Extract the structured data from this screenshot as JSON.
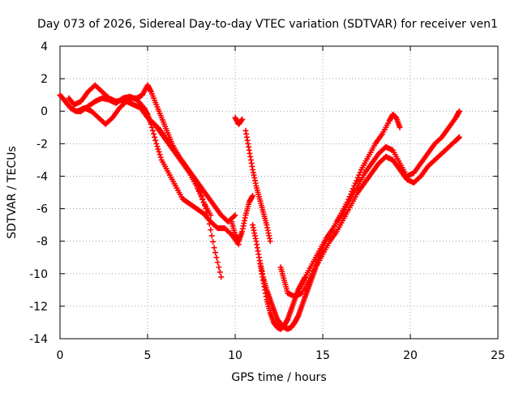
{
  "chart_data": {
    "type": "scatter",
    "title": "Day 073 of 2026, Sidereal Day-to-day VTEC variation (SDTVAR) for receiver ven1",
    "xlabel": "GPS time / hours",
    "ylabel": "SDTVAR / TECUs",
    "xlim": [
      0,
      25
    ],
    "ylim": [
      -14,
      4
    ],
    "xticks": [
      "0",
      "5",
      "10",
      "15",
      "20",
      "25"
    ],
    "yticks": [
      "4",
      "2",
      "0",
      "-2",
      "-4",
      "-6",
      "-8",
      "-10",
      "-12",
      "-14"
    ],
    "grid": true,
    "marker": "plus",
    "color": "#ff0000",
    "series": [
      {
        "x": [
          0.0,
          0.3,
          0.6,
          0.9,
          1.2,
          1.6,
          2.0,
          2.4,
          2.8,
          3.2,
          3.6,
          4.0,
          4.4,
          4.8,
          5.0,
          5.2,
          5.5,
          5.8,
          6.2,
          6.6,
          7.0,
          7.4,
          7.8,
          8.2,
          8.6,
          9.0,
          9.4,
          9.8,
          10.2
        ],
        "y": [
          1.0,
          0.6,
          0.2,
          0.0,
          0.0,
          0.3,
          0.6,
          0.8,
          0.7,
          0.5,
          0.8,
          0.9,
          0.7,
          0.2,
          -0.2,
          -0.8,
          -2.0,
          -3.0,
          -3.8,
          -4.6,
          -5.4,
          -5.7,
          -6.0,
          -6.3,
          -6.8,
          -7.2,
          -7.2,
          -7.6,
          -8.2
        ]
      },
      {
        "x": [
          0.5,
          0.8,
          1.2,
          1.6,
          2.0,
          2.4,
          2.8,
          3.2,
          3.6,
          4.0,
          4.4,
          4.7,
          5.0,
          5.2,
          5.5,
          5.8,
          6.1,
          6.4,
          6.8,
          7.2,
          7.6,
          8.0,
          8.4,
          8.8,
          9.2
        ],
        "y": [
          0.8,
          0.4,
          0.6,
          1.2,
          1.6,
          1.2,
          0.8,
          0.6,
          0.7,
          0.8,
          0.8,
          1.0,
          1.6,
          1.2,
          0.4,
          -0.4,
          -1.2,
          -2.0,
          -2.8,
          -3.4,
          -4.2,
          -5.0,
          -6.2,
          -8.4,
          -10.2
        ]
      },
      {
        "x": [
          1.0,
          1.4,
          1.8,
          2.2,
          2.6,
          3.0,
          3.4,
          3.8,
          4.2,
          4.6,
          5.0,
          5.4,
          5.8,
          6.2,
          6.6,
          7.0,
          7.4,
          7.8,
          8.2,
          8.6
        ],
        "y": [
          0.0,
          0.2,
          0.0,
          -0.4,
          -0.8,
          -0.4,
          0.2,
          0.6,
          0.4,
          0.2,
          -0.4,
          -0.8,
          -1.4,
          -2.0,
          -2.6,
          -3.2,
          -3.8,
          -4.6,
          -5.6,
          -6.4
        ]
      },
      {
        "x": [
          5.6,
          6.0,
          6.4,
          6.8,
          7.2,
          7.6,
          8.0,
          8.4,
          8.8,
          9.2,
          9.6,
          10.0
        ],
        "y": [
          -1.0,
          -1.6,
          -2.2,
          -2.8,
          -3.4,
          -4.0,
          -4.6,
          -5.2,
          -5.8,
          -6.4,
          -6.8,
          -6.4
        ]
      },
      {
        "x": [
          10.0,
          10.2,
          10.4
        ],
        "y": [
          -0.4,
          -0.8,
          -0.5
        ]
      },
      {
        "x": [
          9.8,
          10.0,
          10.2,
          10.4,
          10.6,
          10.8,
          11.0
        ],
        "y": [
          -6.8,
          -7.6,
          -8.0,
          -7.4,
          -6.4,
          -5.6,
          -5.2
        ]
      },
      {
        "x": [
          10.6,
          10.8,
          11.0,
          11.2,
          11.4,
          11.6,
          11.8,
          12.0
        ],
        "y": [
          -1.2,
          -2.4,
          -3.6,
          -4.6,
          -5.4,
          -6.2,
          -7.0,
          -8.0
        ]
      },
      {
        "x": [
          11.0,
          11.2,
          11.4,
          11.6,
          11.8,
          12.0,
          12.2,
          12.4,
          12.6,
          12.8,
          13.0,
          13.2,
          13.4,
          13.6,
          13.8,
          14.0,
          14.2,
          14.4,
          14.6,
          14.8,
          15.0,
          15.4,
          15.8,
          16.2,
          16.6,
          17.0,
          17.4,
          17.8,
          18.2,
          18.6,
          19.0,
          19.4,
          19.8,
          20.2,
          20.6,
          21.0,
          21.4,
          21.8,
          22.2,
          22.6,
          22.8
        ],
        "y": [
          -7.0,
          -8.0,
          -9.2,
          -10.2,
          -11.0,
          -11.6,
          -12.2,
          -12.8,
          -13.1,
          -13.3,
          -13.4,
          -13.3,
          -13.0,
          -12.6,
          -12.0,
          -11.4,
          -10.8,
          -10.2,
          -9.6,
          -9.0,
          -8.4,
          -7.6,
          -6.8,
          -6.2,
          -5.4,
          -4.6,
          -3.8,
          -3.2,
          -2.6,
          -2.2,
          -2.4,
          -3.2,
          -4.0,
          -3.8,
          -3.2,
          -2.6,
          -2.0,
          -1.6,
          -1.0,
          -0.4,
          0.0
        ]
      },
      {
        "x": [
          11.4,
          11.6,
          11.8,
          12.0,
          12.2,
          12.4,
          12.6,
          12.8,
          13.0,
          13.2,
          13.4,
          13.6,
          13.8,
          14.0,
          14.4,
          14.8,
          15.2,
          15.6,
          16.0,
          16.4,
          16.8,
          17.2,
          17.6,
          18.0,
          18.4,
          18.8,
          19.0,
          19.2,
          19.4
        ],
        "y": [
          -9.2,
          -10.4,
          -11.6,
          -12.4,
          -13.0,
          -13.3,
          -13.4,
          -13.2,
          -12.8,
          -12.2,
          -11.6,
          -11.0,
          -10.6,
          -10.2,
          -9.4,
          -8.6,
          -7.8,
          -7.2,
          -6.4,
          -5.6,
          -4.6,
          -3.6,
          -2.8,
          -2.0,
          -1.4,
          -0.6,
          -0.2,
          -0.4,
          -1.0
        ]
      },
      {
        "x": [
          12.6,
          12.8,
          13.0,
          13.4,
          13.8,
          14.2,
          14.6,
          15.0,
          15.4,
          15.8,
          16.2,
          16.6,
          17.0,
          17.4,
          17.8,
          18.2,
          18.6,
          19.0,
          19.4,
          19.8,
          20.2,
          20.6,
          21.0,
          21.4,
          21.8,
          22.2,
          22.6,
          22.8
        ],
        "y": [
          -9.6,
          -10.4,
          -11.2,
          -11.4,
          -11.2,
          -10.4,
          -9.6,
          -8.8,
          -8.0,
          -7.4,
          -6.6,
          -5.8,
          -5.0,
          -4.4,
          -3.8,
          -3.2,
          -2.8,
          -3.0,
          -3.6,
          -4.2,
          -4.4,
          -4.0,
          -3.4,
          -3.0,
          -2.6,
          -2.2,
          -1.8,
          -1.6
        ]
      }
    ]
  }
}
